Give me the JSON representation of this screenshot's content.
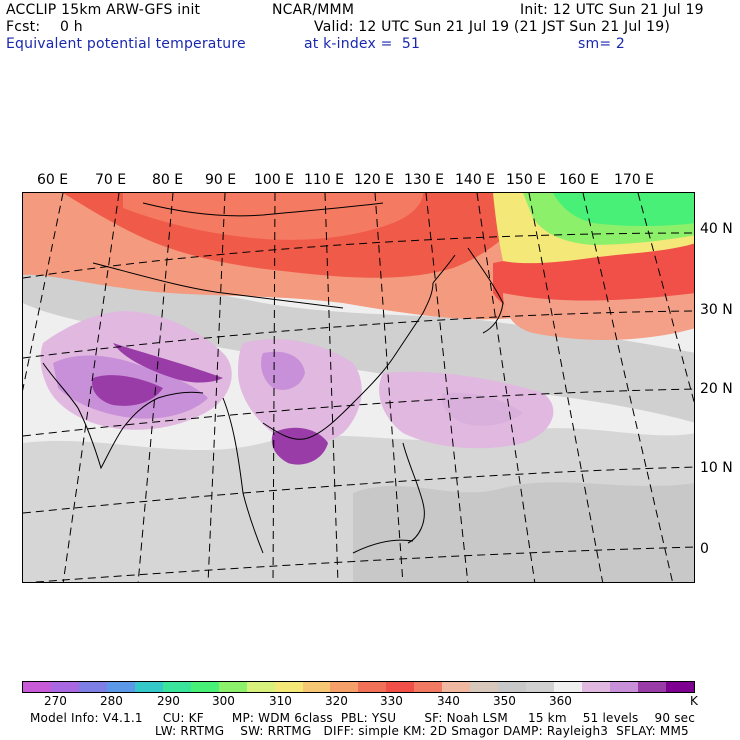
{
  "header": {
    "model_line": "ACCLIP 15km ARW-GFS init",
    "fcst_label": "Fcst:",
    "fcst_value": "0 h",
    "field_name": "Equivalent potential temperature",
    "org": "NCAR/MMM",
    "init": "Init: 12 UTC Sun 21 Jul 19",
    "valid": "Valid: 12 UTC Sun 21 Jul 19 (21 JST Sun 21 Jul 19)",
    "level": "at k-index =  51",
    "smooth": "sm= 2"
  },
  "map": {
    "lon_labels": [
      "60 E",
      "70 E",
      "80 E",
      "90 E",
      "100 E",
      "110 E",
      "120 E",
      "130 E",
      "140 E",
      "150 E",
      "160 E",
      "170 E"
    ],
    "lat_labels": [
      "40 N",
      "30 N",
      "20 N",
      "10 N",
      "0"
    ]
  },
  "colorbar": {
    "unit": "K",
    "tick_labels": [
      "270",
      "280",
      "290",
      "300",
      "310",
      "320",
      "330",
      "340",
      "350",
      "360"
    ],
    "colors": [
      "#c85ad8",
      "#a768e2",
      "#7e7fe4",
      "#5c98e8",
      "#34c8c8",
      "#3ae49a",
      "#48f078",
      "#8cf06a",
      "#d8f07c",
      "#f4e878",
      "#f6c874",
      "#f4a068",
      "#f07058",
      "#f05048",
      "#f27a62",
      "#f0b8a0",
      "#d8c8bc",
      "#c8c8c8",
      "#d0d0d0",
      "#f0f0f0",
      "#e0b8e0",
      "#c890d8",
      "#9a3ca8",
      "#7e0090"
    ]
  },
  "footer": {
    "line1": "Model Info: V4.1.1     CU: KF       MP: WDM 6class  PBL: YSU       SF: Noah LSM     15 km    51 levels    90 sec",
    "line2": "LW: RRTMG    SW: RRTMG   DIFF: simple KM: 2D Smagor DAMP: Rayleigh3  SFLAY: MM5"
  }
}
